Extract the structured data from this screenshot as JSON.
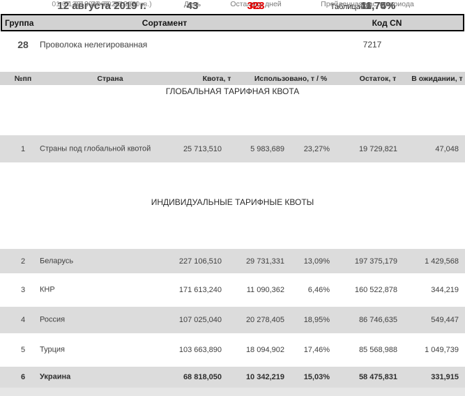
{
  "table_label": "Таблица 12",
  "product_header": {
    "group": "Группа",
    "sortament": "Сортамент",
    "code": "Код CN"
  },
  "product_row": {
    "group": "28",
    "name": "Проволока нелегированная",
    "code": "7217"
  },
  "columns": {
    "num": "№пп",
    "country": "Страна",
    "quota": "Квота, т",
    "used": "Использовано, т / %",
    "remainder": "Остаток, т",
    "pending": "В ожидании, т"
  },
  "colors": {
    "alert_red": "#e30000",
    "shaded_row": "#dcdcdc",
    "header_bg": "#d2d2d2",
    "muted_label": "#8a8a8a"
  },
  "sections": [
    {
      "title": "ГЛОБАЛЬНАЯ ТАРИФНАЯ КВОТА",
      "period_label": "01.07.2019-30.09.2019 (III кв.)",
      "day_label": "День",
      "days_left_label": "Осталось дней",
      "elapsed_label": "Пройденная часть периода",
      "date": "12 августа 2019 г.",
      "day": "43",
      "days_left": "49",
      "elapsed": "46,74%",
      "rows": [
        {
          "num": "1",
          "country": "Страны под глобальной квотой",
          "quota": "25 713,510",
          "used": "5 983,689",
          "used_pct": "23,27%",
          "remainder": "19 729,821",
          "pending": "47,048",
          "shaded": true,
          "bold": false
        }
      ]
    },
    {
      "title": "ИНДИВИДУАЛЬНЫЕ ТАРИФНЫЕ КВОТЫ",
      "period_label": "01.07.2019-30.06.2020",
      "day_label": "День",
      "days_left_label": "Осталось дней",
      "elapsed_label": "Пройденная часть периода",
      "date": "12 августа 2019 г.",
      "day": "43",
      "days_left": "323",
      "elapsed": "11,75%",
      "rows": [
        {
          "num": "2",
          "country": "Беларусь",
          "quota": "227 106,510",
          "used": "29 731,331",
          "used_pct": "13,09%",
          "remainder": "197 375,179",
          "pending": "1 429,568",
          "shaded": true,
          "bold": false
        },
        {
          "num": "3",
          "country": "КНР",
          "quota": "171 613,240",
          "used": "11 090,362",
          "used_pct": "6,46%",
          "remainder": "160 522,878",
          "pending": "344,219",
          "shaded": false,
          "bold": false
        },
        {
          "num": "4",
          "country": "Россия",
          "quota": "107 025,040",
          "used": "20 278,405",
          "used_pct": "18,95%",
          "remainder": "86 746,635",
          "pending": "549,447",
          "shaded": true,
          "bold": false
        },
        {
          "num": "5",
          "country": "Турция",
          "quota": "103 663,890",
          "used": "18 094,902",
          "used_pct": "17,46%",
          "remainder": "85 568,988",
          "pending": "1 049,739",
          "shaded": false,
          "bold": false
        },
        {
          "num": "6",
          "country": "Украина",
          "quota": "68 818,050",
          "used": "10 342,219",
          "used_pct": "15,03%",
          "remainder": "58 475,831",
          "pending": "331,915",
          "shaded": true,
          "bold": true
        }
      ]
    }
  ]
}
